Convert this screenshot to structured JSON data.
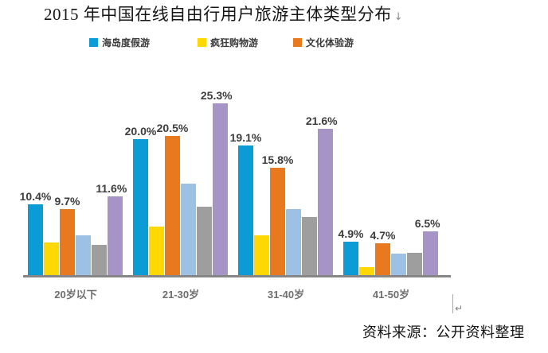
{
  "document": {
    "title": "2015 年中国在线自由行用户旅游主体类型分布",
    "title_paragraph_mark": "↓",
    "cursor_paragraph_mark": "↵",
    "source_note": "资料来源：公开资料整理"
  },
  "chart_data": {
    "type": "bar",
    "title": "2015 年中国在线自由行用户旅游主体类型分布",
    "categories": [
      "20岁以下",
      "21-30岁",
      "31-40岁",
      "41-50岁"
    ],
    "series": [
      {
        "name": "海岛度假游",
        "color": "#0b9bd5",
        "in_legend": true,
        "show_value_labels": true,
        "values": [
          10.4,
          20.0,
          19.1,
          4.9
        ]
      },
      {
        "name": "疯狂购物游",
        "color": "#fdd803",
        "in_legend": true,
        "show_value_labels": false,
        "values": [
          4.8,
          7.2,
          5.9,
          1.2
        ]
      },
      {
        "name": "文化体验游",
        "color": "#e8791f",
        "in_legend": true,
        "show_value_labels": true,
        "values": [
          9.7,
          20.5,
          15.8,
          4.7
        ]
      },
      {
        "name": "",
        "color": "#9cc1e4",
        "in_legend": false,
        "show_value_labels": false,
        "values": [
          5.9,
          13.5,
          9.7,
          3.2
        ]
      },
      {
        "name": "",
        "color": "#9e9e9e",
        "in_legend": false,
        "show_value_labels": false,
        "values": [
          4.4,
          10.1,
          8.5,
          3.3
        ]
      },
      {
        "name": "",
        "color": "#a694c6",
        "in_legend": false,
        "show_value_labels": true,
        "values": [
          11.6,
          25.3,
          21.6,
          6.5
        ]
      }
    ],
    "value_label_format": "{value}%",
    "xlabel": "",
    "ylabel": "",
    "ylim": [
      0,
      30
    ],
    "grid": false,
    "legend_position": "top"
  }
}
